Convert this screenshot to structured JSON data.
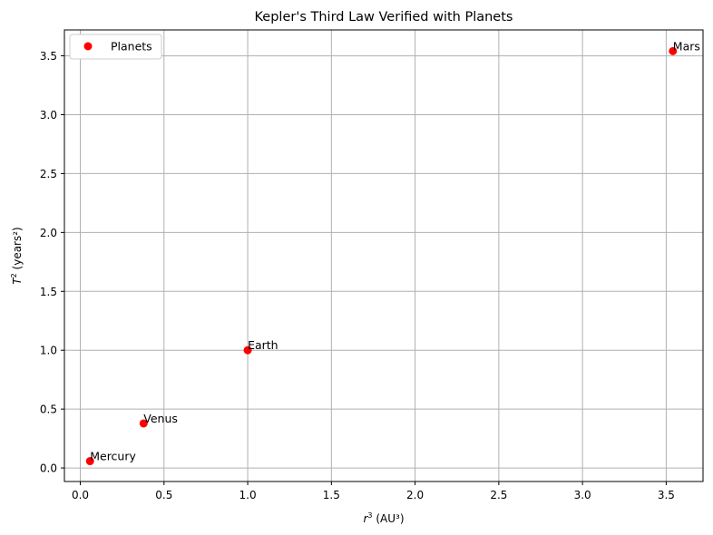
{
  "chart_data": {
    "type": "scatter",
    "title": "Kepler's Third Law Verified with Planets",
    "xlabel": {
      "base": "r",
      "sup": "3",
      "rest": " (AU³)"
    },
    "ylabel": {
      "base": "T",
      "sup": "2",
      "rest": " (years²)"
    },
    "xlim": [
      -0.095,
      3.72
    ],
    "ylim": [
      -0.115,
      3.72
    ],
    "x_ticks": [
      0.0,
      0.5,
      1.0,
      1.5,
      2.0,
      2.5,
      3.0,
      3.5
    ],
    "x_tick_labels": [
      "0.0",
      "0.5",
      "1.0",
      "1.5",
      "2.0",
      "2.5",
      "3.0",
      "3.5"
    ],
    "y_ticks": [
      0.0,
      0.5,
      1.0,
      1.5,
      2.0,
      2.5,
      3.0,
      3.5
    ],
    "y_tick_labels": [
      "0.0",
      "0.5",
      "1.0",
      "1.5",
      "2.0",
      "2.5",
      "3.0",
      "3.5"
    ],
    "grid": true,
    "legend": {
      "placement": "top-left",
      "entries": [
        "Planets"
      ]
    },
    "series": [
      {
        "name": "Planets",
        "color": "#ff0000",
        "points": [
          {
            "label": "Mercury",
            "x": 0.058,
            "y": 0.058
          },
          {
            "label": "Venus",
            "x": 0.378,
            "y": 0.378
          },
          {
            "label": "Earth",
            "x": 1.0,
            "y": 1.0
          },
          {
            "label": "Mars",
            "x": 3.54,
            "y": 3.54
          }
        ]
      }
    ]
  }
}
